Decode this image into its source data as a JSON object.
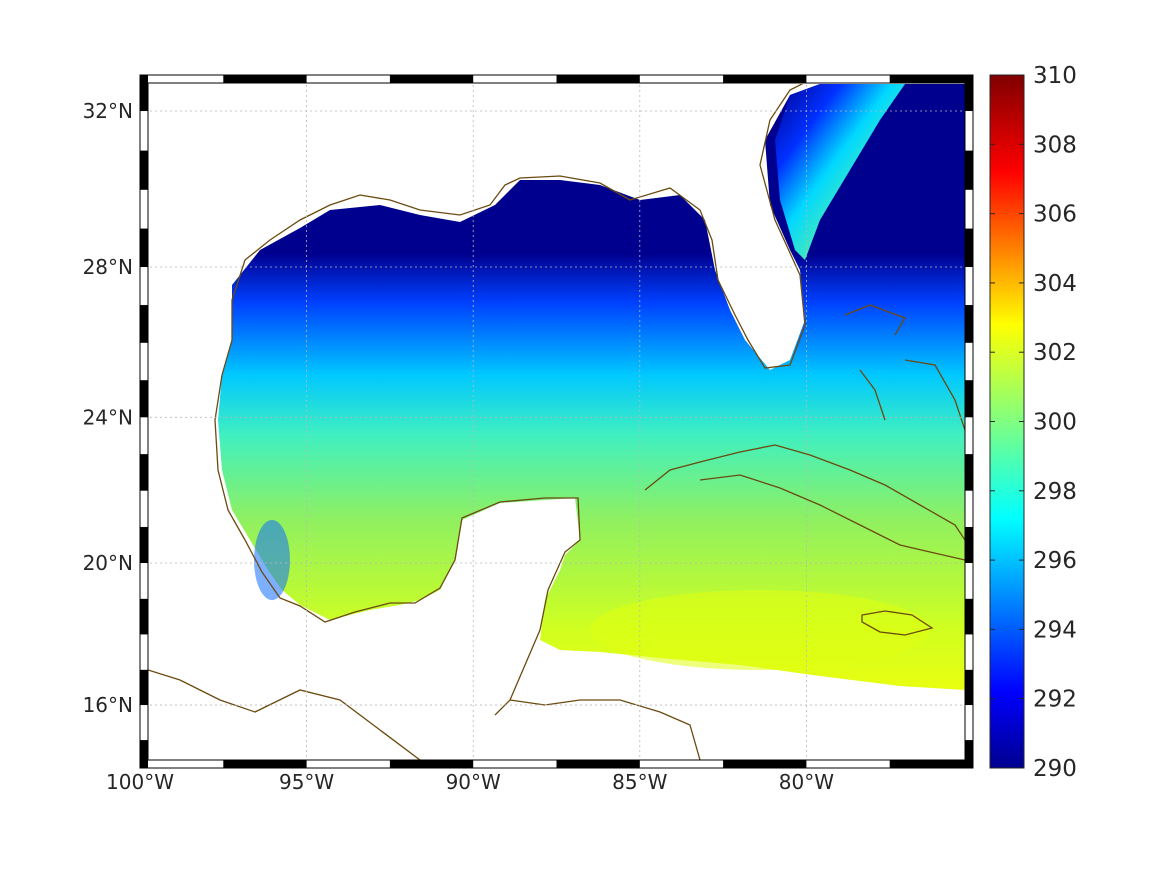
{
  "map": {
    "projection": "Mercator",
    "lon_range": [
      -100,
      -75
    ],
    "lat_range": [
      14.2,
      32.9
    ],
    "grid": true,
    "coastline_color": "#6b4a10",
    "land_color": "#ffffff",
    "x_ticks": [
      {
        "lon": -100,
        "label": "100°W"
      },
      {
        "lon": -95,
        "label": "95°W"
      },
      {
        "lon": -90,
        "label": "90°W"
      },
      {
        "lon": -85,
        "label": "85°W"
      },
      {
        "lon": -80,
        "label": "80°W"
      }
    ],
    "y_ticks": [
      {
        "lat": 32,
        "label": "32°N"
      },
      {
        "lat": 28,
        "label": "28°N"
      },
      {
        "lat": 24,
        "label": "24°N"
      },
      {
        "lat": 20,
        "label": "20°N"
      },
      {
        "lat": 16,
        "label": "16°N"
      }
    ]
  },
  "colorbar": {
    "colormap": "jet",
    "min": 290,
    "max": 310,
    "ticks": [
      "290",
      "292",
      "294",
      "296",
      "298",
      "300",
      "302",
      "304",
      "306",
      "308",
      "310"
    ],
    "colors": [
      "#00008f",
      "#0000ff",
      "#0080ff",
      "#00ffff",
      "#80ff80",
      "#ffff00",
      "#ff8000",
      "#ff0000",
      "#800000"
    ]
  }
}
